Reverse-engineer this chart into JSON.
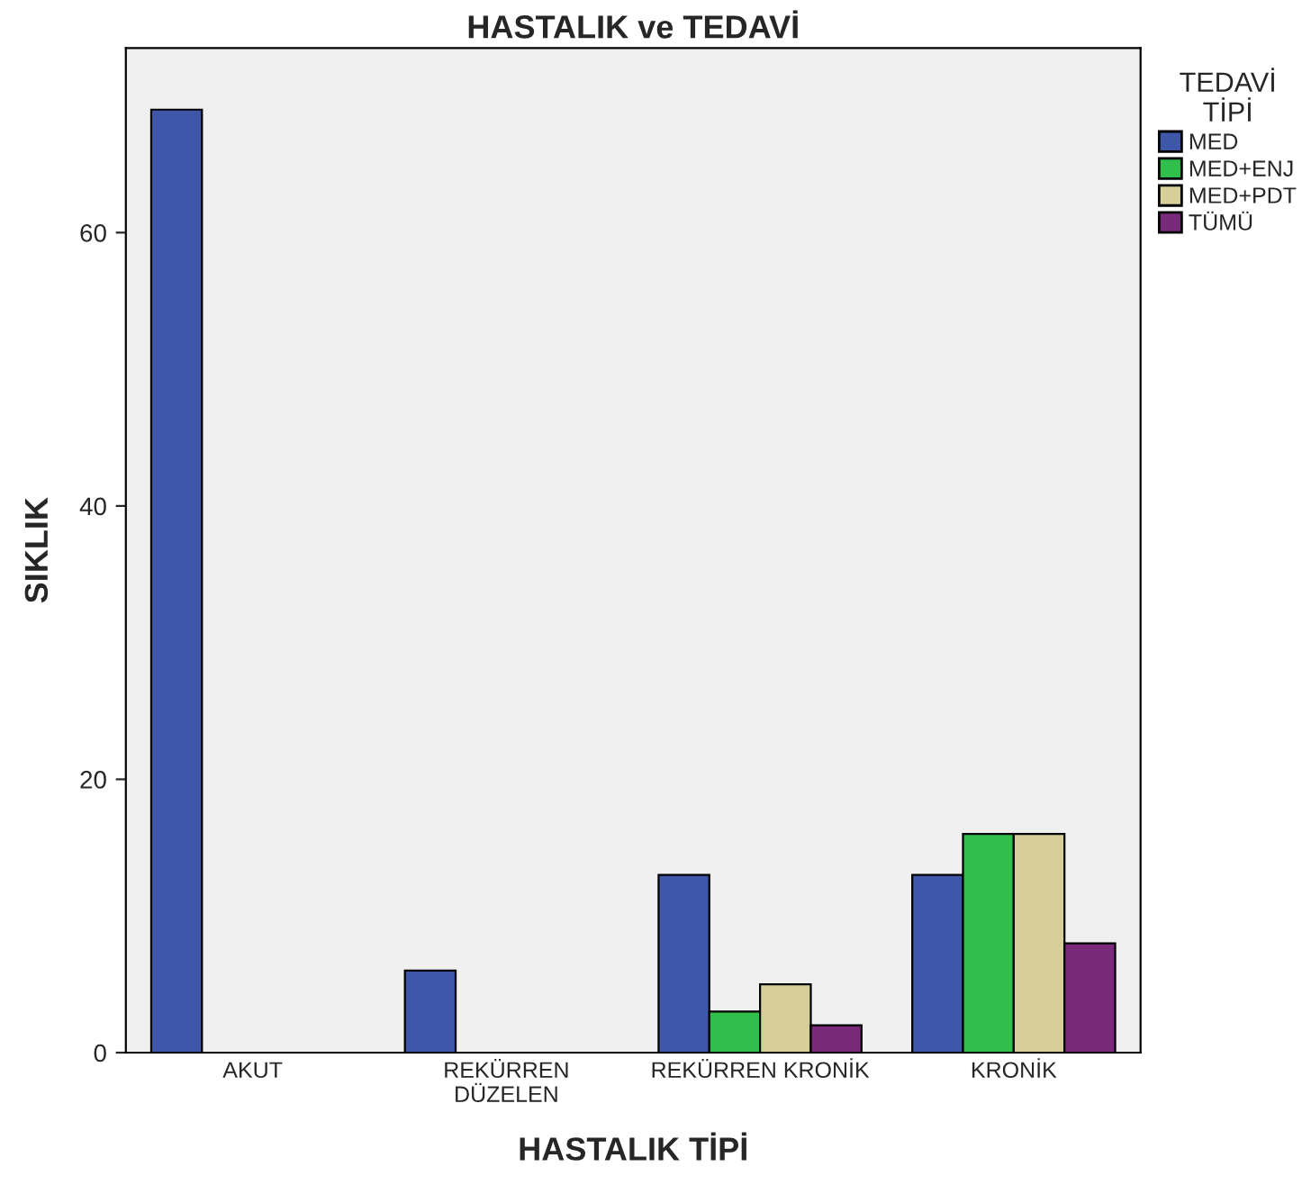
{
  "chart_data": {
    "type": "bar",
    "title": "HASTALIK ve TEDAVİ",
    "xlabel": "HASTALIK TİPİ",
    "ylabel": "SIKLIK",
    "legend_title": "TEDAVİ\nTİPİ",
    "categories": [
      "AKUT",
      "REKÜRREN\nDÜZELEN",
      "REKÜRREN KRONİK",
      "KRONİK"
    ],
    "series": [
      {
        "name": "MED",
        "color": "#3f57a9",
        "values": [
          69,
          6,
          13,
          13
        ]
      },
      {
        "name": "MED+ENJ",
        "color": "#2fbf4a",
        "values": [
          null,
          null,
          3,
          16
        ]
      },
      {
        "name": "MED+PDT",
        "color": "#d6cf9a",
        "values": [
          null,
          null,
          5,
          16
        ]
      },
      {
        "name": "TÜMÜ",
        "color": "#7a2a7a",
        "values": [
          null,
          null,
          2,
          8
        ]
      }
    ],
    "ylim": [
      0,
      73.5
    ],
    "yticks": [
      0,
      20,
      40,
      60
    ],
    "grid": false,
    "legend": "right"
  }
}
